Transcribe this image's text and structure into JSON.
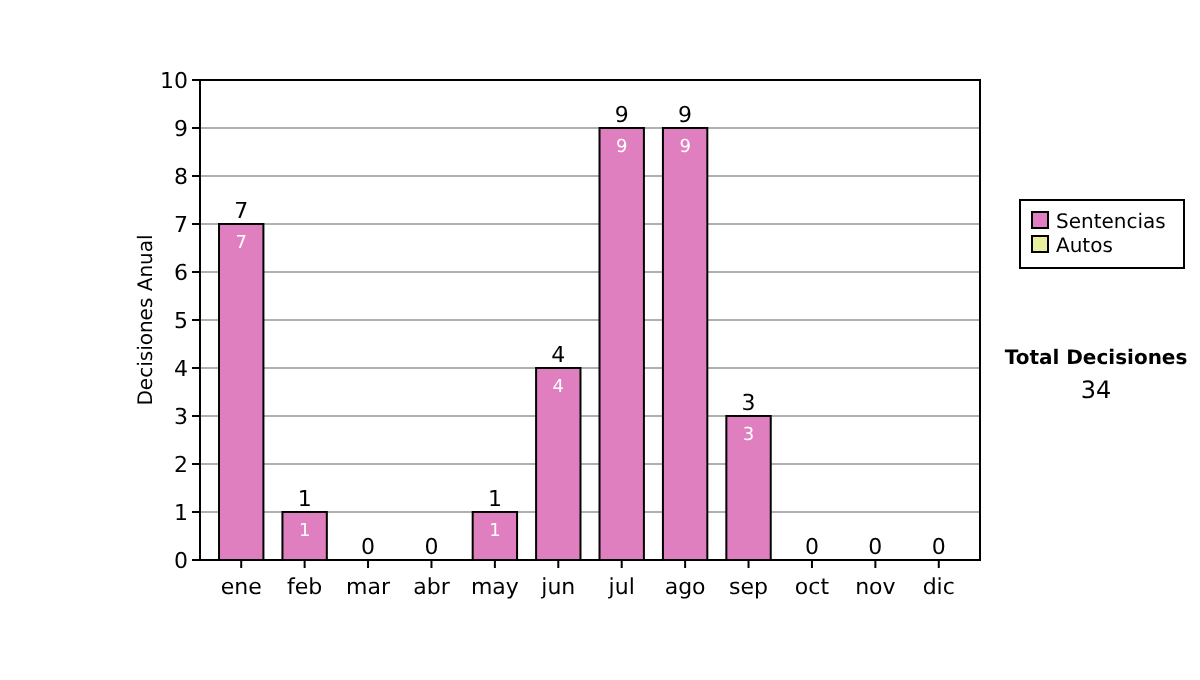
{
  "chart_data": {
    "type": "bar",
    "ylabel": "Decisiones Anual",
    "categories": [
      "ene",
      "feb",
      "mar",
      "abr",
      "may",
      "jun",
      "jul",
      "ago",
      "sep",
      "oct",
      "nov",
      "dic"
    ],
    "series": [
      {
        "name": "Sentencias",
        "color": "#e07fc0",
        "values": [
          7,
          1,
          0,
          0,
          1,
          4,
          9,
          9,
          3,
          0,
          0,
          0
        ],
        "value_labels": [
          "7",
          "1",
          null,
          null,
          "1",
          "4",
          "9",
          "9",
          "3",
          null,
          null,
          null
        ]
      },
      {
        "name": "Autos",
        "color": "#e8f0a0",
        "values": [
          0,
          0,
          0,
          0,
          0,
          0,
          0,
          0,
          0,
          0,
          0,
          0
        ]
      }
    ],
    "totals": [
      "7",
      "1",
      "0",
      "0",
      "1",
      "4",
      "9",
      "9",
      "3",
      "0",
      "0",
      "0"
    ],
    "ylim": [
      0,
      10
    ],
    "yticks": [
      0,
      1,
      2,
      3,
      4,
      5,
      6,
      7,
      8,
      9,
      10
    ],
    "grid": "y",
    "legend": "right",
    "annotations": [
      "Total Decisiones",
      "34"
    ]
  }
}
